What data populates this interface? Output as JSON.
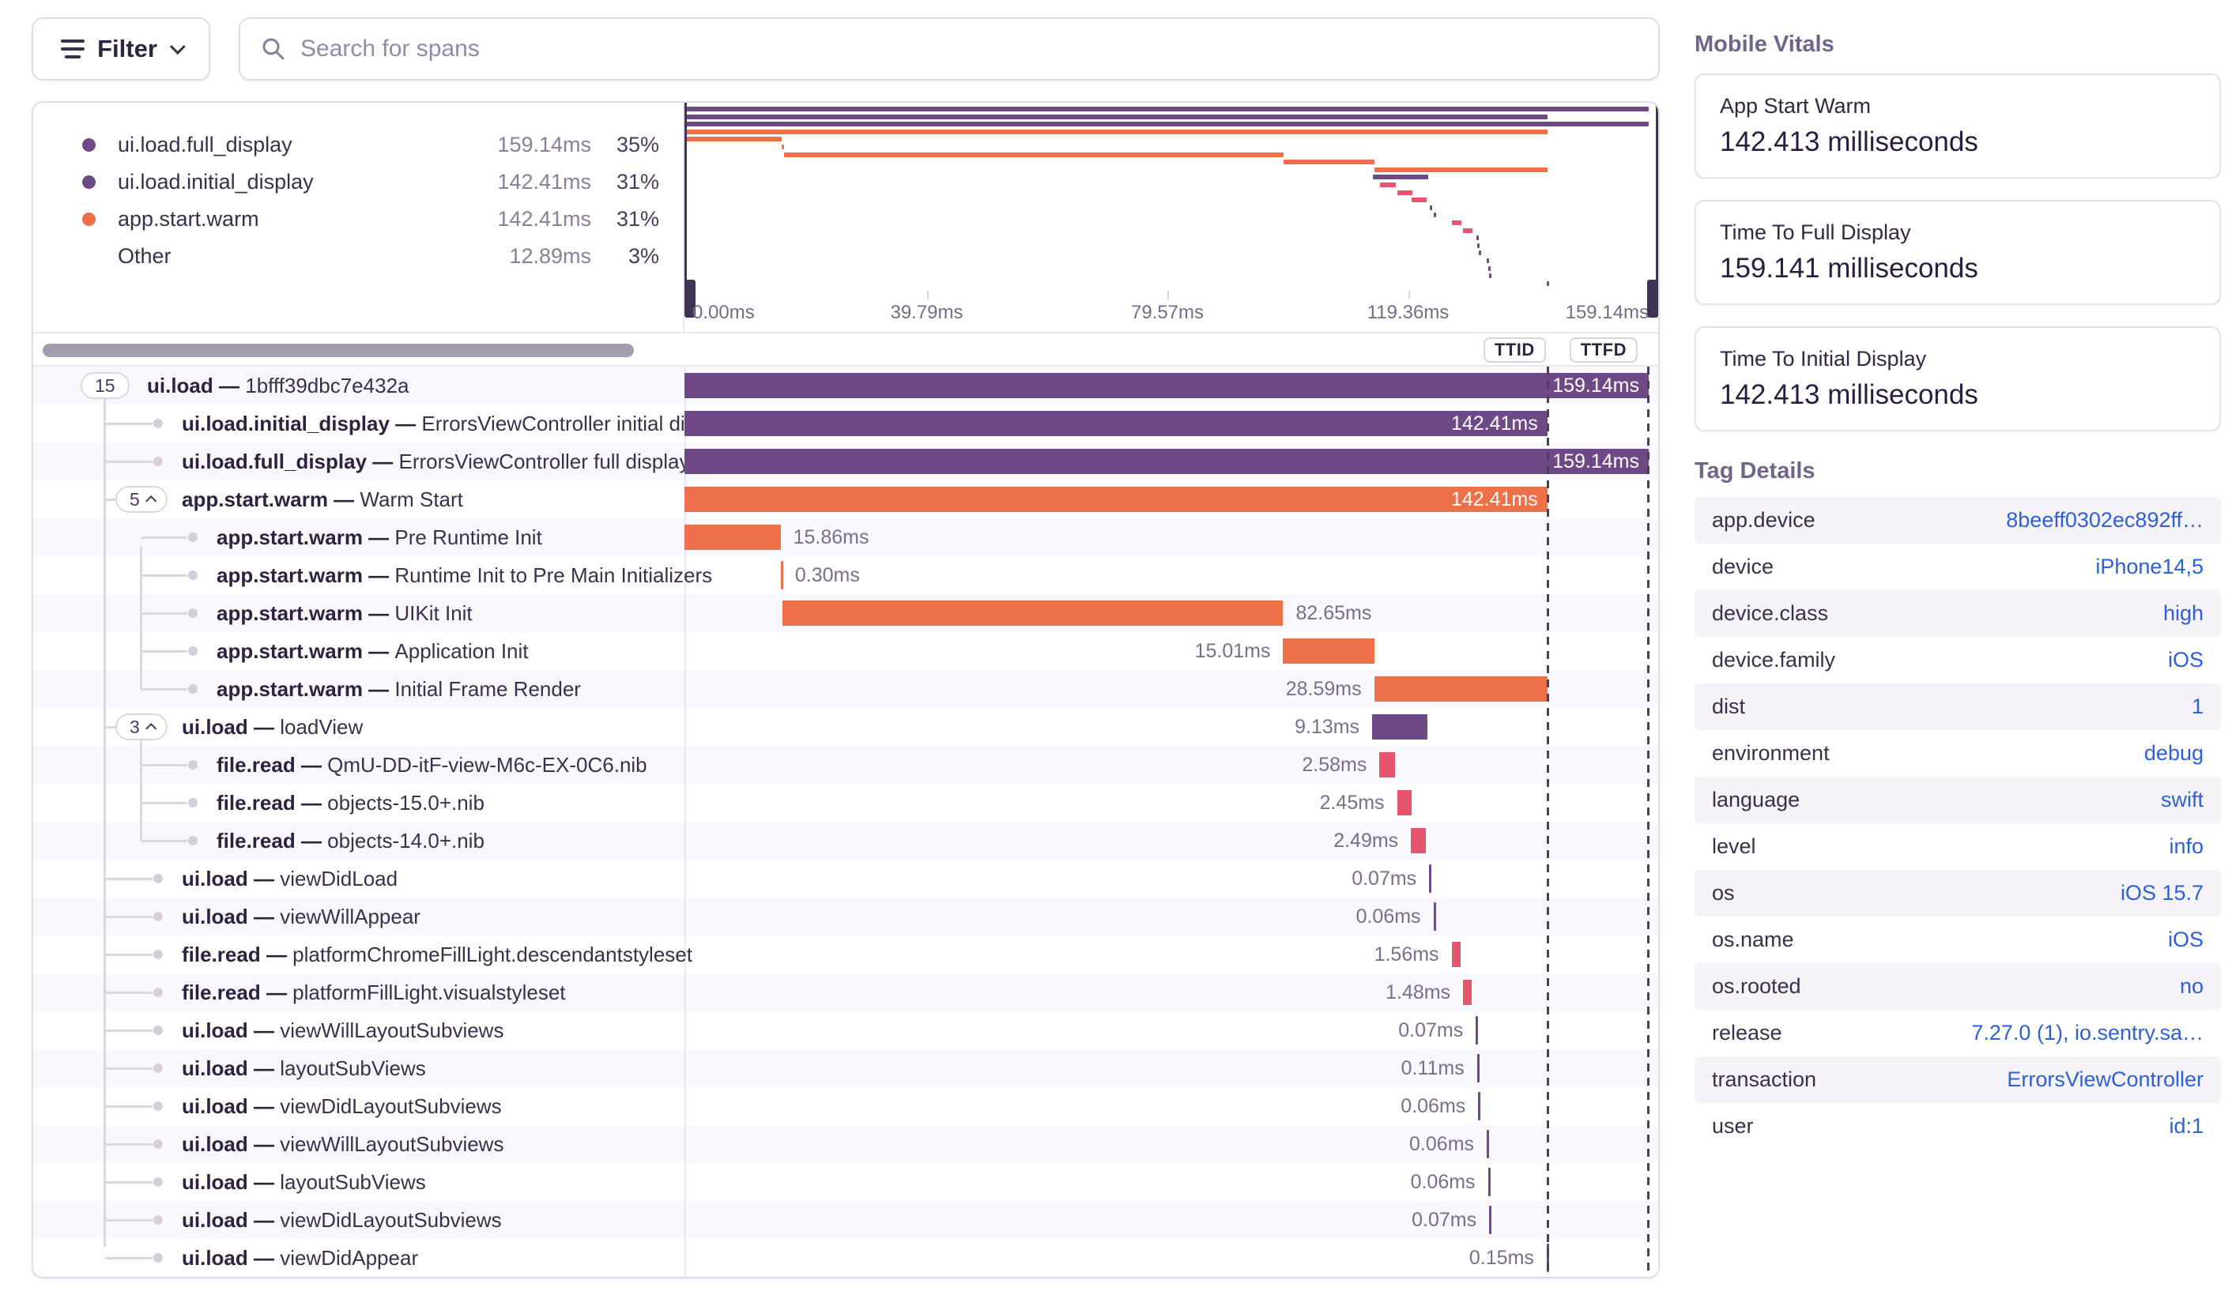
{
  "ui": {
    "separator": "—"
  },
  "toolbar": {
    "filter_label": "Filter",
    "search_placeholder": "Search for spans"
  },
  "colors": {
    "purple": "#6D4A86",
    "orange": "#EE7048",
    "pink": "#E5566E",
    "handle": "#3F3552",
    "link_blue": "#2E5FD7"
  },
  "legend": {
    "items": [
      {
        "name": "ui.load.full_display",
        "duration": "159.14ms",
        "percent": "35%",
        "color": "purple"
      },
      {
        "name": "ui.load.initial_display",
        "duration": "142.41ms",
        "percent": "31%",
        "color": "purple"
      },
      {
        "name": "app.start.warm",
        "duration": "142.41ms",
        "percent": "31%",
        "color": "orange"
      },
      {
        "name": "Other",
        "duration": "12.89ms",
        "percent": "3%",
        "color": null
      }
    ]
  },
  "timeline": {
    "total_ms": 159.14,
    "ttid_ms": 142.41,
    "ttfd_ms": 159.14,
    "axis_ticks": [
      "0.00ms",
      "39.79ms",
      "79.57ms",
      "119.36ms",
      "159.14ms"
    ]
  },
  "markers": {
    "ttid_label": "TTID",
    "ttfd_label": "TTFD"
  },
  "spans": [
    {
      "op": "ui.load",
      "desc": "1bfff39dbc7e432a",
      "depth": 0,
      "badge": "15",
      "chevron": false,
      "color": "purple",
      "start_ms": 0,
      "dur_ms": 159.14,
      "label": "159.14ms",
      "label_pos": "in",
      "thin": false
    },
    {
      "op": "ui.load.initial_display",
      "desc": "ErrorsViewController initial display",
      "depth": 1,
      "badge": null,
      "chevron": false,
      "color": "purple",
      "start_ms": 0,
      "dur_ms": 142.41,
      "label": "142.41ms",
      "label_pos": "in",
      "thin": false
    },
    {
      "op": "ui.load.full_display",
      "desc": "ErrorsViewController full display",
      "depth": 1,
      "badge": null,
      "chevron": false,
      "color": "purple",
      "start_ms": 0,
      "dur_ms": 159.14,
      "label": "159.14ms",
      "label_pos": "in",
      "thin": false
    },
    {
      "op": "app.start.warm",
      "desc": "Warm Start",
      "depth": 1,
      "badge": "5",
      "chevron": true,
      "color": "orange",
      "start_ms": 0,
      "dur_ms": 142.41,
      "label": "142.41ms",
      "label_pos": "in",
      "thin": false
    },
    {
      "op": "app.start.warm",
      "desc": "Pre Runtime Init",
      "depth": 2,
      "badge": null,
      "chevron": false,
      "color": "orange",
      "start_ms": 0,
      "dur_ms": 15.86,
      "label": "15.86ms",
      "label_pos": "right",
      "thin": false
    },
    {
      "op": "app.start.warm",
      "desc": "Runtime Init to Pre Main Initializers",
      "depth": 2,
      "badge": null,
      "chevron": false,
      "color": "orange",
      "start_ms": 15.86,
      "dur_ms": 0.3,
      "label": "0.30ms",
      "label_pos": "right",
      "thin": true
    },
    {
      "op": "app.start.warm",
      "desc": "UIKit Init",
      "depth": 2,
      "badge": null,
      "chevron": false,
      "color": "orange",
      "start_ms": 16.16,
      "dur_ms": 82.65,
      "label": "82.65ms",
      "label_pos": "right",
      "thin": false
    },
    {
      "op": "app.start.warm",
      "desc": "Application Init",
      "depth": 2,
      "badge": null,
      "chevron": false,
      "color": "orange",
      "start_ms": 98.81,
      "dur_ms": 15.01,
      "label": "15.01ms",
      "label_pos": "left",
      "thin": false
    },
    {
      "op": "app.start.warm",
      "desc": "Initial Frame Render",
      "depth": 2,
      "badge": null,
      "chevron": false,
      "color": "orange",
      "start_ms": 113.82,
      "dur_ms": 28.59,
      "label": "28.59ms",
      "label_pos": "left",
      "thin": false
    },
    {
      "op": "ui.load",
      "desc": "loadView",
      "depth": 1,
      "badge": "3",
      "chevron": true,
      "color": "purple",
      "start_ms": 113.5,
      "dur_ms": 9.13,
      "label": "9.13ms",
      "label_pos": "left",
      "thin": false
    },
    {
      "op": "file.read",
      "desc": "QmU-DD-itF-view-M6c-EX-0C6.nib",
      "depth": 2,
      "badge": null,
      "chevron": false,
      "color": "pink",
      "start_ms": 114.7,
      "dur_ms": 2.58,
      "label": "2.58ms",
      "label_pos": "left",
      "thin": false
    },
    {
      "op": "file.read",
      "desc": "objects-15.0+.nib",
      "depth": 2,
      "badge": null,
      "chevron": false,
      "color": "pink",
      "start_ms": 117.6,
      "dur_ms": 2.45,
      "label": "2.45ms",
      "label_pos": "left",
      "thin": false
    },
    {
      "op": "file.read",
      "desc": "objects-14.0+.nib",
      "depth": 2,
      "badge": null,
      "chevron": false,
      "color": "pink",
      "start_ms": 119.9,
      "dur_ms": 2.49,
      "label": "2.49ms",
      "label_pos": "left",
      "thin": false
    },
    {
      "op": "ui.load",
      "desc": "viewDidLoad",
      "depth": 1,
      "badge": null,
      "chevron": false,
      "color": "purple",
      "start_ms": 122.9,
      "dur_ms": 0.07,
      "label": "0.07ms",
      "label_pos": "left",
      "thin": true
    },
    {
      "op": "ui.load",
      "desc": "viewWillAppear",
      "depth": 1,
      "badge": null,
      "chevron": false,
      "color": "purple",
      "start_ms": 123.6,
      "dur_ms": 0.06,
      "label": "0.06ms",
      "label_pos": "left",
      "thin": true
    },
    {
      "op": "file.read",
      "desc": "platformChromeFillLight.descendantstyleset",
      "depth": 1,
      "badge": null,
      "chevron": false,
      "color": "pink",
      "start_ms": 126.6,
      "dur_ms": 1.56,
      "label": "1.56ms",
      "label_pos": "left",
      "thin": false
    },
    {
      "op": "file.read",
      "desc": "platformFillLight.visualstyleset",
      "depth": 1,
      "badge": null,
      "chevron": false,
      "color": "pink",
      "start_ms": 128.5,
      "dur_ms": 1.48,
      "label": "1.48ms",
      "label_pos": "left",
      "thin": false
    },
    {
      "op": "ui.load",
      "desc": "viewWillLayoutSubviews",
      "depth": 1,
      "badge": null,
      "chevron": false,
      "color": "purple",
      "start_ms": 130.6,
      "dur_ms": 0.07,
      "label": "0.07ms",
      "label_pos": "left",
      "thin": true
    },
    {
      "op": "ui.load",
      "desc": "layoutSubViews",
      "depth": 1,
      "badge": null,
      "chevron": false,
      "color": "purple",
      "start_ms": 130.8,
      "dur_ms": 0.11,
      "label": "0.11ms",
      "label_pos": "left",
      "thin": true
    },
    {
      "op": "ui.load",
      "desc": "viewDidLayoutSubviews",
      "depth": 1,
      "badge": null,
      "chevron": false,
      "color": "purple",
      "start_ms": 131.0,
      "dur_ms": 0.06,
      "label": "0.06ms",
      "label_pos": "left",
      "thin": true
    },
    {
      "op": "ui.load",
      "desc": "viewWillLayoutSubviews",
      "depth": 1,
      "badge": null,
      "chevron": false,
      "color": "purple",
      "start_ms": 132.4,
      "dur_ms": 0.06,
      "label": "0.06ms",
      "label_pos": "left",
      "thin": true
    },
    {
      "op": "ui.load",
      "desc": "layoutSubViews",
      "depth": 1,
      "badge": null,
      "chevron": false,
      "color": "purple",
      "start_ms": 132.6,
      "dur_ms": 0.06,
      "label": "0.06ms",
      "label_pos": "left",
      "thin": true
    },
    {
      "op": "ui.load",
      "desc": "viewDidLayoutSubviews",
      "depth": 1,
      "badge": null,
      "chevron": false,
      "color": "purple",
      "start_ms": 132.8,
      "dur_ms": 0.07,
      "label": "0.07ms",
      "label_pos": "left",
      "thin": true
    },
    {
      "op": "ui.load",
      "desc": "viewDidAppear",
      "depth": 1,
      "badge": null,
      "chevron": false,
      "color": "purple",
      "start_ms": 142.3,
      "dur_ms": 0.15,
      "label": "0.15ms",
      "label_pos": "left",
      "thin": true
    }
  ],
  "vitals": {
    "heading": "Mobile Vitals",
    "cards": [
      {
        "label": "App Start Warm",
        "value": "142.413 milliseconds"
      },
      {
        "label": "Time To Full Display",
        "value": "159.141 milliseconds"
      },
      {
        "label": "Time To Initial Display",
        "value": "142.413 milliseconds"
      }
    ]
  },
  "tags": {
    "heading": "Tag Details",
    "rows": [
      {
        "key": "app.device",
        "value": "8beeff0302ec892ff…"
      },
      {
        "key": "device",
        "value": "iPhone14,5"
      },
      {
        "key": "device.class",
        "value": "high"
      },
      {
        "key": "device.family",
        "value": "iOS"
      },
      {
        "key": "dist",
        "value": "1"
      },
      {
        "key": "environment",
        "value": "debug"
      },
      {
        "key": "language",
        "value": "swift"
      },
      {
        "key": "level",
        "value": "info"
      },
      {
        "key": "os",
        "value": "iOS 15.7"
      },
      {
        "key": "os.name",
        "value": "iOS"
      },
      {
        "key": "os.rooted",
        "value": "no"
      },
      {
        "key": "release",
        "value": "7.27.0 (1), io.sentry.sa…"
      },
      {
        "key": "transaction",
        "value": "ErrorsViewController"
      },
      {
        "key": "user",
        "value": "id:1"
      }
    ]
  }
}
